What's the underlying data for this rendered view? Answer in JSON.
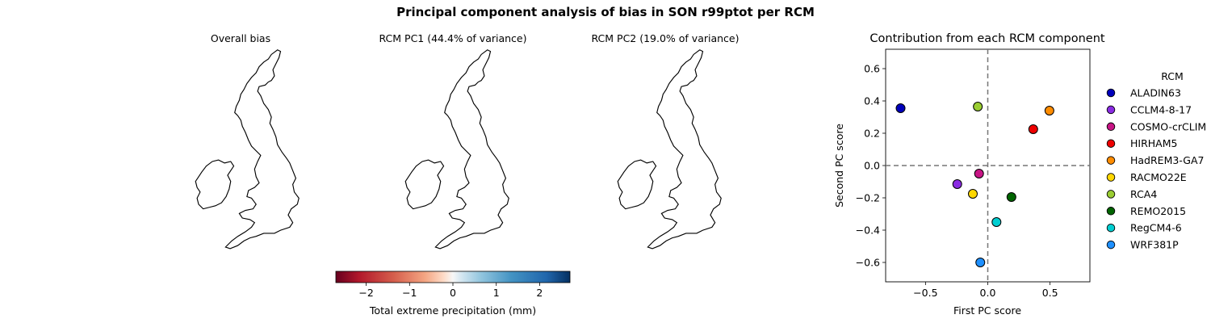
{
  "title": "Principal component analysis of bias in SON r99ptot per RCM",
  "maps": [
    {
      "title": "Overall bias",
      "pattern": "mixed"
    },
    {
      "title": "RCM PC1 (44.4% of variance)",
      "pattern": "blue"
    },
    {
      "title": "RCM PC2 (19.0% of variance)",
      "pattern": "north-red"
    }
  ],
  "colorbar": {
    "label": "Total extreme precipitation (mm)",
    "ticks": [
      -2,
      -1,
      0,
      1,
      2
    ],
    "tick_labels": [
      "−2",
      "−1",
      "0",
      "1",
      "2"
    ],
    "range": [
      -2.7,
      2.7
    ],
    "colormap": "RdBu"
  },
  "chart_data": {
    "type": "scatter",
    "title": "Contribution from each RCM component",
    "xlabel": "First PC score",
    "ylabel": "Second PC score",
    "xlim": [
      -0.82,
      0.82
    ],
    "ylim": [
      -0.72,
      0.72
    ],
    "xticks": [
      -0.5,
      0.0,
      0.5
    ],
    "xtick_labels": [
      "−0.5",
      "0.0",
      "0.5"
    ],
    "yticks": [
      -0.6,
      -0.4,
      -0.2,
      0.0,
      0.2,
      0.4,
      0.6
    ],
    "ytick_labels": [
      "−0.6",
      "−0.4",
      "−0.2",
      "0.0",
      "0.2",
      "0.4",
      "0.6"
    ],
    "reference_lines": {
      "x": 0,
      "y": 0,
      "style": "dashed"
    },
    "legend_title": "RCM",
    "legend_position": "outside-right",
    "series": [
      {
        "name": "ALADIN63",
        "x": -0.7,
        "y": 0.355,
        "color": "#0000bb"
      },
      {
        "name": "CCLM4-8-17",
        "x": -0.245,
        "y": -0.115,
        "color": "#8a2be2"
      },
      {
        "name": "COSMO-crCLIM",
        "x": -0.07,
        "y": -0.05,
        "color": "#c71585"
      },
      {
        "name": "HIRHAM5",
        "x": 0.365,
        "y": 0.225,
        "color": "#ee0000"
      },
      {
        "name": "HadREM3-GA7",
        "x": 0.495,
        "y": 0.34,
        "color": "#ff8c00"
      },
      {
        "name": "RACMO22E",
        "x": -0.12,
        "y": -0.175,
        "color": "#ffd700"
      },
      {
        "name": "RCA4",
        "x": -0.08,
        "y": 0.365,
        "color": "#9acd32"
      },
      {
        "name": "REMO2015",
        "x": 0.19,
        "y": -0.195,
        "color": "#006400"
      },
      {
        "name": "RegCM4-6",
        "x": 0.07,
        "y": -0.35,
        "color": "#00ced1"
      },
      {
        "name": "WRF381P",
        "x": -0.06,
        "y": -0.6,
        "color": "#1e90ff"
      }
    ]
  }
}
